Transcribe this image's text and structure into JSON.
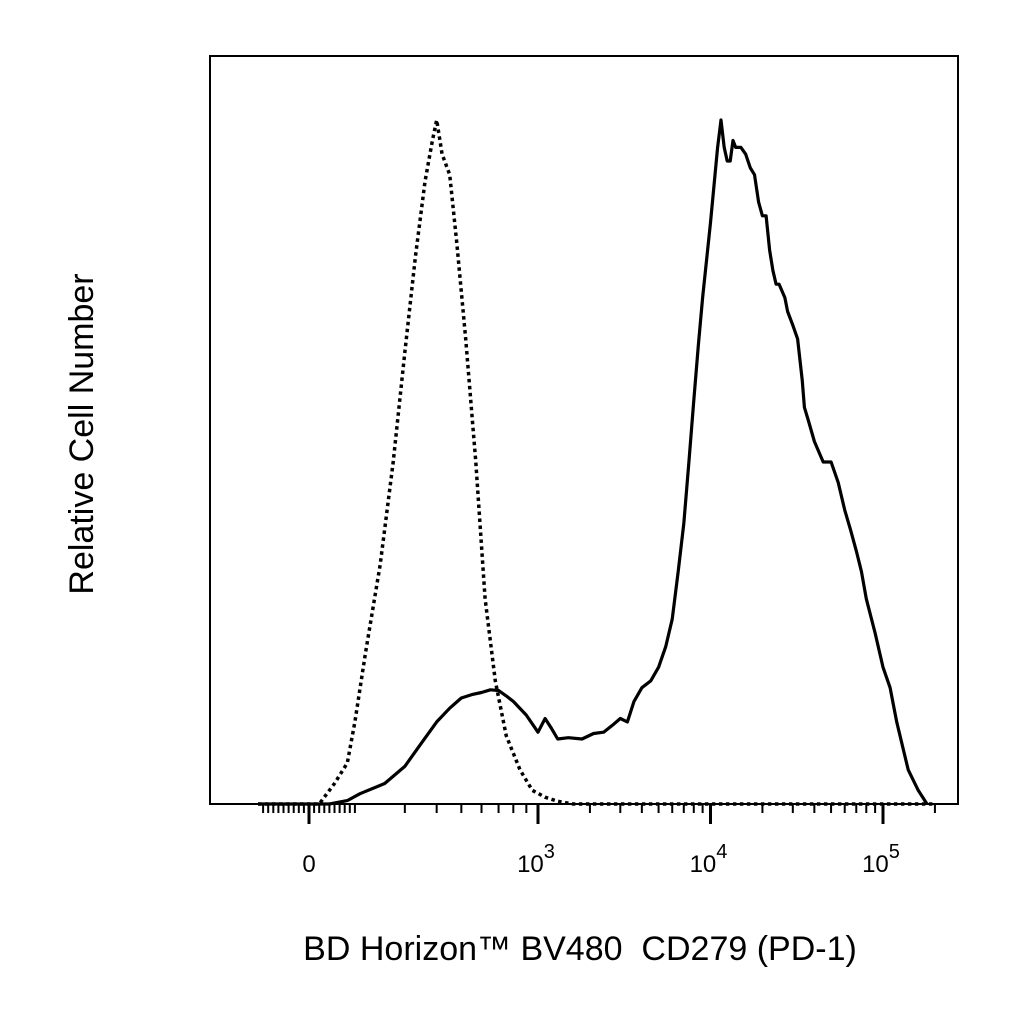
{
  "chart_data": {
    "type": "line",
    "title": "",
    "xlabel": "BD Horizon™ BV480  CD279 (PD-1)",
    "ylabel": "Relative Cell Number",
    "x_scale": "biexponential",
    "xlim": [
      -200,
      200000
    ],
    "ylim": [
      0,
      100
    ],
    "grid": false,
    "legend": "none",
    "ticks": [
      {
        "value": 0,
        "base": "0",
        "exp": ""
      },
      {
        "value": 1000,
        "base": "10",
        "exp": "3"
      },
      {
        "value": 10000,
        "base": "10",
        "exp": "4"
      },
      {
        "value": 100000,
        "base": "10",
        "exp": "5"
      }
    ],
    "series": [
      {
        "style": "dotted",
        "color": "#000000",
        "x": [
          -200,
          40,
          60,
          100,
          150,
          180,
          210,
          240,
          270,
          300,
          330,
          360,
          385,
          400,
          420,
          450,
          480,
          520,
          570,
          620,
          680,
          750,
          850,
          950,
          1100,
          1300,
          1600,
          2000,
          5000,
          200000
        ],
        "y": [
          0,
          0,
          1,
          3,
          6,
          12,
          22,
          35,
          50,
          66,
          80,
          91,
          97,
          100,
          95,
          92,
          82,
          68,
          50,
          30,
          18,
          10,
          5,
          2,
          1,
          0.4,
          0,
          0,
          0,
          0
        ]
      },
      {
        "style": "solid",
        "color": "#000000",
        "x": [
          -200,
          80,
          150,
          200,
          250,
          300,
          350,
          400,
          450,
          500,
          550,
          600,
          650,
          700,
          750,
          800,
          900,
          1000,
          1100,
          1200,
          1300,
          1500,
          1800,
          2100,
          2400,
          2700,
          3000,
          3300,
          3600,
          4000,
          4500,
          5000,
          5500,
          6000,
          6500,
          7000,
          7500,
          8000,
          8500,
          9000,
          10000,
          11000,
          11500,
          12000,
          12500,
          13000,
          13500,
          14000,
          15000,
          16000,
          17000,
          18000,
          19000,
          20000,
          21000,
          22000,
          23000,
          24000,
          25000,
          27000,
          28000,
          30000,
          32000,
          33000,
          34000,
          35000,
          37000,
          40000,
          45000,
          50000,
          55000,
          60000,
          65000,
          70000,
          75000,
          80000,
          90000,
          100000,
          110000,
          120000,
          140000,
          160000,
          180000
        ],
        "y": [
          0,
          0,
          0.5,
          1.5,
          3,
          5.5,
          9,
          12,
          14,
          15.5,
          16,
          16.3,
          16.7,
          16.6,
          15.8,
          15,
          13,
          10.5,
          12.5,
          11,
          9.5,
          9.7,
          9.5,
          10.3,
          10.5,
          11.5,
          12.5,
          12,
          15,
          17,
          18,
          20,
          23,
          27,
          34,
          41,
          50,
          59,
          67,
          74,
          85,
          96,
          100,
          96,
          94,
          94,
          97,
          96,
          96,
          95,
          93,
          92,
          88,
          86,
          86,
          81,
          78,
          76,
          76,
          74,
          72,
          70,
          68,
          65,
          62,
          58,
          56,
          53,
          50,
          50,
          47,
          43,
          40,
          37,
          34,
          30,
          25,
          20,
          17,
          12,
          5,
          2,
          0
        ]
      }
    ]
  }
}
